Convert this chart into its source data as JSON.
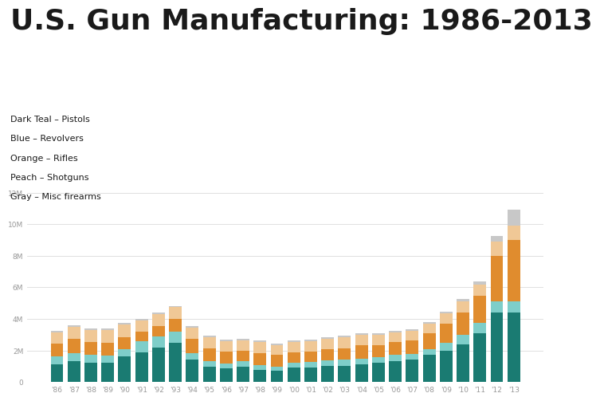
{
  "title": "U.S. Gun Manufacturing: 1986-2013",
  "legend_lines": [
    "Dark Teal – Pistols",
    "Blue – Revolvers",
    "Orange – Rifles",
    "Peach – Shotguns",
    "Gray – Misc firearms"
  ],
  "years": [
    "'86",
    "'87",
    "'88",
    "'89",
    "'90",
    "'91",
    "'92",
    "'93",
    "'94",
    "'95",
    "'96",
    "'97",
    "'98",
    "'99",
    "'00",
    "'01",
    "'02",
    "'03",
    "'04",
    "'05",
    "'06",
    "'07",
    "'08",
    "'09",
    "'10",
    "'11",
    "'12",
    "'13"
  ],
  "pistols": [
    1100000,
    1300000,
    1200000,
    1200000,
    1600000,
    1900000,
    2200000,
    2500000,
    1400000,
    950000,
    850000,
    950000,
    750000,
    700000,
    900000,
    900000,
    1000000,
    1000000,
    1100000,
    1200000,
    1300000,
    1400000,
    1700000,
    2000000,
    2400000,
    3100000,
    4400000,
    4400000
  ],
  "revolvers": [
    500000,
    550000,
    500000,
    450000,
    500000,
    700000,
    700000,
    700000,
    400000,
    350000,
    300000,
    350000,
    300000,
    250000,
    300000,
    350000,
    350000,
    400000,
    350000,
    350000,
    400000,
    350000,
    400000,
    500000,
    600000,
    650000,
    700000,
    700000
  ],
  "rifles": [
    850000,
    900000,
    850000,
    850000,
    750000,
    600000,
    650000,
    800000,
    950000,
    850000,
    800000,
    700000,
    800000,
    750000,
    700000,
    700000,
    750000,
    750000,
    900000,
    800000,
    850000,
    900000,
    1000000,
    1200000,
    1400000,
    1700000,
    2900000,
    3900000
  ],
  "shotguns": [
    700000,
    750000,
    750000,
    800000,
    800000,
    700000,
    750000,
    750000,
    700000,
    700000,
    650000,
    650000,
    700000,
    650000,
    650000,
    650000,
    650000,
    700000,
    650000,
    650000,
    600000,
    600000,
    600000,
    650000,
    700000,
    700000,
    900000,
    900000
  ],
  "misc": [
    100000,
    100000,
    100000,
    100000,
    100000,
    80000,
    80000,
    80000,
    80000,
    80000,
    80000,
    80000,
    80000,
    80000,
    80000,
    80000,
    80000,
    80000,
    80000,
    80000,
    80000,
    80000,
    80000,
    100000,
    150000,
    200000,
    350000,
    1000000
  ],
  "colors": {
    "pistols": "#1a7b72",
    "revolvers": "#7ecec9",
    "rifles": "#e08c2e",
    "shotguns": "#f0c896",
    "misc": "#c8c8c8"
  },
  "ylim": [
    0,
    12000000
  ],
  "yticks": [
    0,
    2000000,
    4000000,
    6000000,
    8000000,
    10000000,
    12000000
  ],
  "ytick_labels": [
    "0",
    "2M",
    "4M",
    "6M",
    "8M",
    "10M",
    "12M"
  ],
  "background_color": "#ffffff",
  "grid_color": "#e0e0e0",
  "title_fontsize": 26,
  "legend_fontsize": 8,
  "tick_fontsize": 6.5
}
